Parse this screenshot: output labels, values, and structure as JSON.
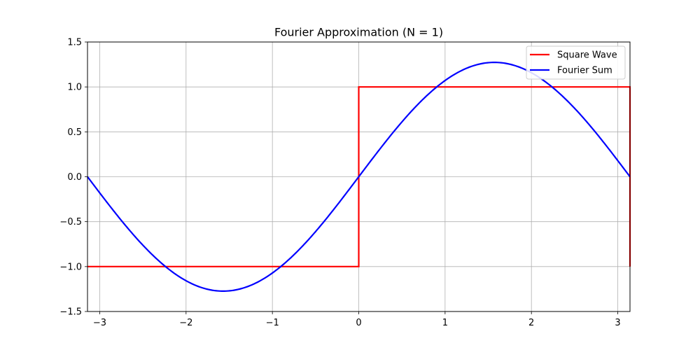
{
  "chart_data": {
    "type": "line",
    "title": "Fourier Approximation (N = 1)",
    "xlabel": "",
    "ylabel": "",
    "xlim": [
      -3.14159,
      3.14159
    ],
    "ylim": [
      -1.5,
      1.5
    ],
    "xticks": [
      -3,
      -2,
      -1,
      0,
      1,
      2,
      3
    ],
    "xtick_labels": [
      "−3",
      "−2",
      "−1",
      "0",
      "1",
      "2",
      "3"
    ],
    "yticks": [
      -1.5,
      -1.0,
      -0.5,
      0.0,
      0.5,
      1.0,
      1.5
    ],
    "ytick_labels": [
      "−1.5",
      "−1.0",
      "−0.5",
      "0.0",
      "0.5",
      "1.0",
      "1.5"
    ],
    "grid": true,
    "legend_position": "top-right",
    "series": [
      {
        "name": "Square Wave",
        "color": "#ff0000",
        "function": "sign(sin(x))",
        "x": [
          -3.14159,
          0,
          0,
          3.14159,
          3.14159
        ],
        "y": [
          -1,
          -1,
          1,
          1,
          -1
        ]
      },
      {
        "name": "Fourier Sum",
        "color": "#0000ff",
        "function": "(4/pi)*sin(x)",
        "amplitude": 1.2732,
        "peak": [
          1.5708,
          1.2732
        ],
        "trough": [
          -1.5708,
          -1.2732
        ]
      }
    ]
  }
}
